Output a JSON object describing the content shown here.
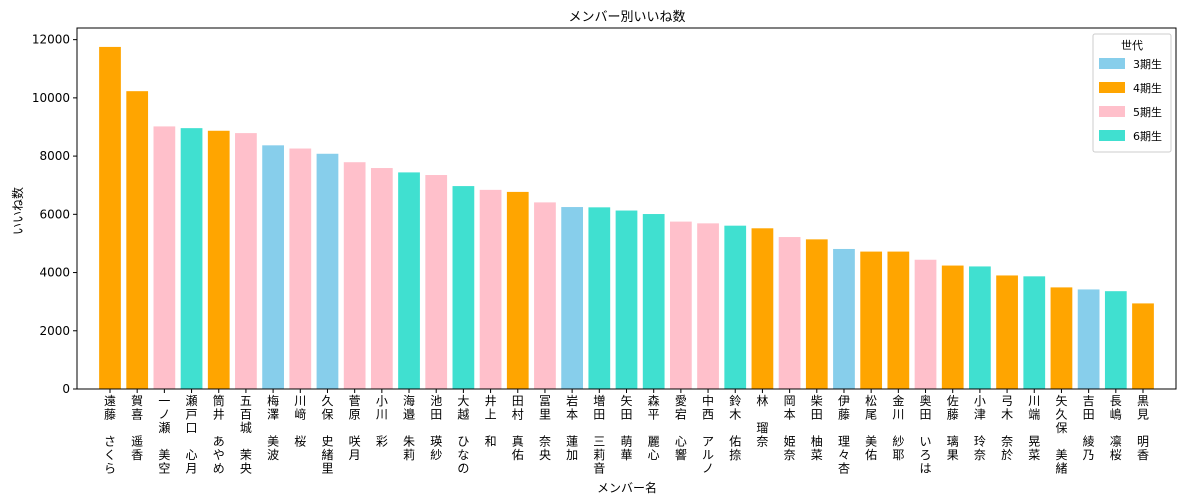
{
  "chart_data": {
    "type": "bar",
    "title": "メンバー別いいね数",
    "xlabel": "メンバー名",
    "ylabel": "いいね数",
    "ylim": [
      0,
      12400
    ],
    "yticks": [
      0,
      2000,
      4000,
      6000,
      8000,
      10000,
      12000
    ],
    "grid": false,
    "legend": {
      "title": "世代",
      "position": "top-right",
      "entries": [
        {
          "name": "3期生",
          "color": "#87CEEB"
        },
        {
          "name": "4期生",
          "color": "#FFA500"
        },
        {
          "name": "5期生",
          "color": "#FFC0CB"
        },
        {
          "name": "6期生",
          "color": "#40E0D0"
        }
      ]
    },
    "categories": [
      "遠藤 さくら",
      "賀喜 遥香",
      "一ノ瀬 美空",
      "瀬戸口 心月",
      "筒井 あやめ",
      "五百城 茉央",
      "梅澤 美波",
      "川﨑 桜",
      "久保 史緒里",
      "菅原 咲月",
      "小川 彩",
      "海邉 朱莉",
      "池田 瑛紗",
      "大越 ひなの",
      "井上 和",
      "田村 真佑",
      "冨里 奈央",
      "岩本 蓮加",
      "増田 三莉音",
      "矢田 萌華",
      "森平 麗心",
      "愛宕 心響",
      "中西 アルノ",
      "鈴木 佑捺",
      "林 瑠奈",
      "岡本 姫奈",
      "柴田 柚菜",
      "伊藤 理々杏",
      "松尾 美佑",
      "金川 紗耶",
      "奥田 いろは",
      "佐藤 璃果",
      "小津 玲奈",
      "弓木 奈於",
      "川端 晃菜",
      "矢久保 美緒",
      "吉田 綾乃",
      "長嶋 凛桜",
      "黒見 明香"
    ],
    "values": [
      11750,
      10230,
      9020,
      8960,
      8870,
      8790,
      8370,
      8260,
      8080,
      7790,
      7590,
      7440,
      7350,
      6970,
      6840,
      6770,
      6410,
      6250,
      6240,
      6130,
      6010,
      5750,
      5690,
      5610,
      5520,
      5220,
      5140,
      4810,
      4720,
      4720,
      4440,
      4240,
      4210,
      3900,
      3870,
      3490,
      3420,
      3360,
      2940
    ],
    "generation": [
      "4期生",
      "4期生",
      "5期生",
      "6期生",
      "4期生",
      "5期生",
      "3期生",
      "5期生",
      "3期生",
      "5期生",
      "5期生",
      "6期生",
      "5期生",
      "6期生",
      "5期生",
      "4期生",
      "5期生",
      "3期生",
      "6期生",
      "6期生",
      "6期生",
      "5期生",
      "5期生",
      "6期生",
      "4期生",
      "5期生",
      "4期生",
      "3期生",
      "4期生",
      "4期生",
      "5期生",
      "4期生",
      "6期生",
      "4期生",
      "6期生",
      "4期生",
      "3期生",
      "6期生",
      "4期生"
    ]
  }
}
